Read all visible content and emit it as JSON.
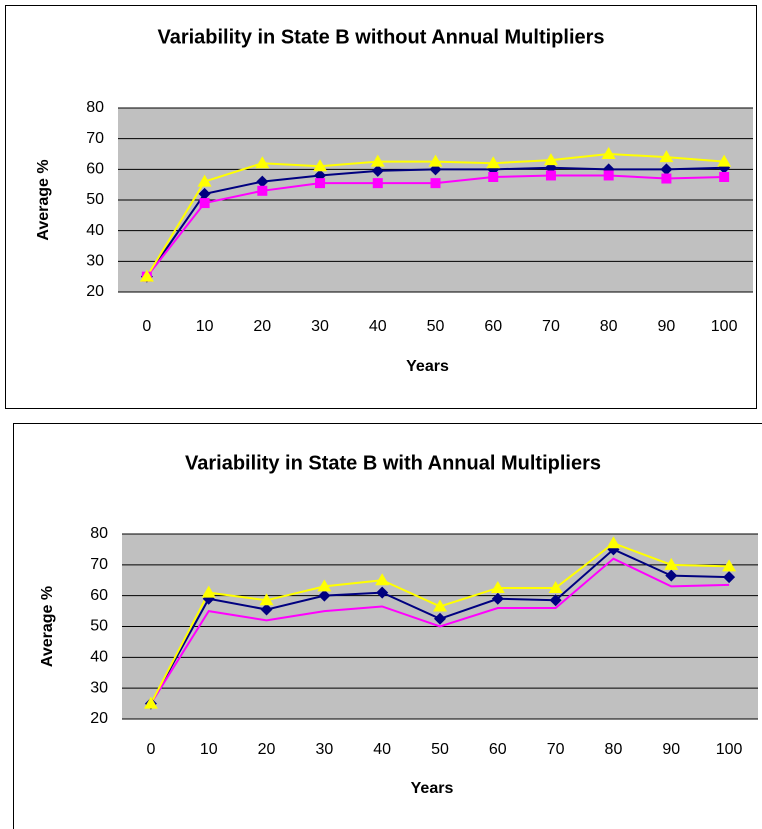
{
  "chart_data": [
    {
      "type": "line",
      "title": "Variability in State B without Annual Multipliers",
      "xlabel": "Years",
      "ylabel": "Average %",
      "categories": [
        "0",
        "10",
        "20",
        "30",
        "40",
        "50",
        "60",
        "70",
        "80",
        "90",
        "100"
      ],
      "ylim": [
        20,
        80
      ],
      "yticks": [
        20,
        30,
        40,
        50,
        60,
        70,
        80
      ],
      "grid": true,
      "series": [
        {
          "color": "#000080",
          "marker": "diamond",
          "values": [
            25,
            52,
            56,
            58,
            59.5,
            60,
            60,
            60.5,
            60,
            60,
            60.5
          ]
        },
        {
          "color": "#ff00ff",
          "marker": "square",
          "values": [
            25,
            49,
            53,
            55.5,
            55.5,
            55.5,
            57.5,
            58,
            58,
            57,
            57.5
          ]
        },
        {
          "color": "#ffff00",
          "marker": "triangle",
          "values": [
            25,
            56,
            62,
            61,
            62.5,
            62.5,
            62,
            63,
            65,
            64,
            62.5
          ]
        }
      ]
    },
    {
      "type": "line",
      "title": "Variability in State B with Annual Multipliers",
      "xlabel": "Years",
      "ylabel": "Average %",
      "categories": [
        "0",
        "10",
        "20",
        "30",
        "40",
        "50",
        "60",
        "70",
        "80",
        "90",
        "100"
      ],
      "ylim": [
        20,
        80
      ],
      "yticks": [
        20,
        30,
        40,
        50,
        60,
        70,
        80
      ],
      "grid": true,
      "series": [
        {
          "color": "#000080",
          "marker": "diamond",
          "values": [
            25,
            59,
            55.5,
            60,
            61,
            52.5,
            59,
            58.5,
            75,
            66.5,
            66
          ]
        },
        {
          "color": "#ff00ff",
          "marker": "none",
          "values": [
            25,
            55,
            52,
            55,
            56.5,
            50,
            56,
            56,
            72,
            63,
            63.5
          ]
        },
        {
          "color": "#ffff00",
          "marker": "triangle",
          "values": [
            25,
            61,
            58.5,
            63,
            65,
            56.5,
            62.5,
            62.5,
            77,
            70,
            69.5
          ]
        }
      ]
    }
  ]
}
